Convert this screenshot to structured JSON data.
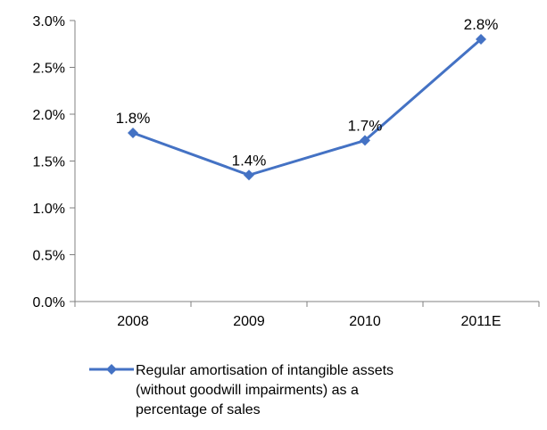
{
  "chart_data": {
    "type": "line",
    "categories": [
      "2008",
      "2009",
      "2010",
      "2011E"
    ],
    "series": [
      {
        "name": "Regular amortisation of intangible assets (without goodwill impairments) as a percentage of sales",
        "values": [
          1.8,
          1.35,
          1.72,
          2.8
        ],
        "labels": [
          "1.8%",
          "1.4%",
          "1.7%",
          "2.8%"
        ]
      }
    ],
    "legend_lines": [
      "Regular amortisation of intangible assets",
      "(without goodwill impairments) as a",
      "percentage of sales"
    ],
    "yticks": [
      "0.0%",
      "0.5%",
      "1.0%",
      "1.5%",
      "2.0%",
      "2.5%",
      "3.0%"
    ],
    "ylim": [
      0,
      3.0
    ],
    "title": "",
    "xlabel": "",
    "ylabel": "",
    "grid": false,
    "legend_position": "bottom",
    "colors": {
      "series": "#4472C4",
      "axis": "#808080"
    }
  }
}
